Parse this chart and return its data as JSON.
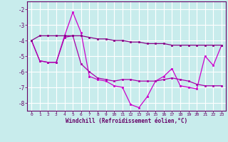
{
  "xlabel": "Windchill (Refroidissement éolien,°C)",
  "x": [
    0,
    1,
    2,
    3,
    4,
    5,
    6,
    7,
    8,
    9,
    10,
    11,
    12,
    13,
    14,
    15,
    16,
    17,
    18,
    19,
    20,
    21,
    22,
    23
  ],
  "line1": [
    -4.0,
    -5.3,
    -5.4,
    -5.4,
    -3.7,
    -2.2,
    -3.5,
    -6.3,
    -6.5,
    -6.6,
    -6.9,
    -7.0,
    -8.1,
    -8.3,
    -7.6,
    -6.6,
    -6.3,
    -5.8,
    -6.9,
    -7.0,
    -7.1,
    -5.0,
    -5.6,
    -4.3
  ],
  "line2": [
    -4.0,
    -5.3,
    -5.4,
    -5.4,
    -3.8,
    -3.7,
    -5.5,
    -6.0,
    -6.4,
    -6.5,
    -6.6,
    -6.5,
    -6.5,
    -6.6,
    -6.6,
    -6.6,
    -6.5,
    -6.4,
    -6.5,
    -6.6,
    -6.8,
    -6.9,
    -6.9,
    -6.9
  ],
  "line3": [
    -4.0,
    -3.7,
    -3.7,
    -3.7,
    -3.7,
    -3.7,
    -3.7,
    -3.8,
    -3.9,
    -3.9,
    -4.0,
    -4.0,
    -4.1,
    -4.1,
    -4.2,
    -4.2,
    -4.2,
    -4.3,
    -4.3,
    -4.3,
    -4.3,
    -4.3,
    -4.3,
    -4.3
  ],
  "line_color1": "#cc00cc",
  "line_color2": "#aa00aa",
  "line_color3": "#880088",
  "bg_color": "#c8ecec",
  "grid_color": "#aadddd",
  "text_color": "#660066",
  "ylim": [
    -8.5,
    -1.5
  ],
  "xlim": [
    -0.5,
    23.5
  ],
  "yticks": [
    -8,
    -7,
    -6,
    -5,
    -4,
    -3,
    -2
  ],
  "xticks": [
    0,
    1,
    2,
    3,
    4,
    5,
    6,
    7,
    8,
    9,
    10,
    11,
    12,
    13,
    14,
    15,
    16,
    17,
    18,
    19,
    20,
    21,
    22,
    23
  ],
  "xtick_labels": [
    "0",
    "1",
    "2",
    "3",
    "4",
    "5",
    "6",
    "7",
    "8",
    "9",
    "10",
    "11",
    "12",
    "13",
    "14",
    "15",
    "16",
    "17",
    "18",
    "19",
    "20",
    "21",
    "22",
    "23"
  ]
}
